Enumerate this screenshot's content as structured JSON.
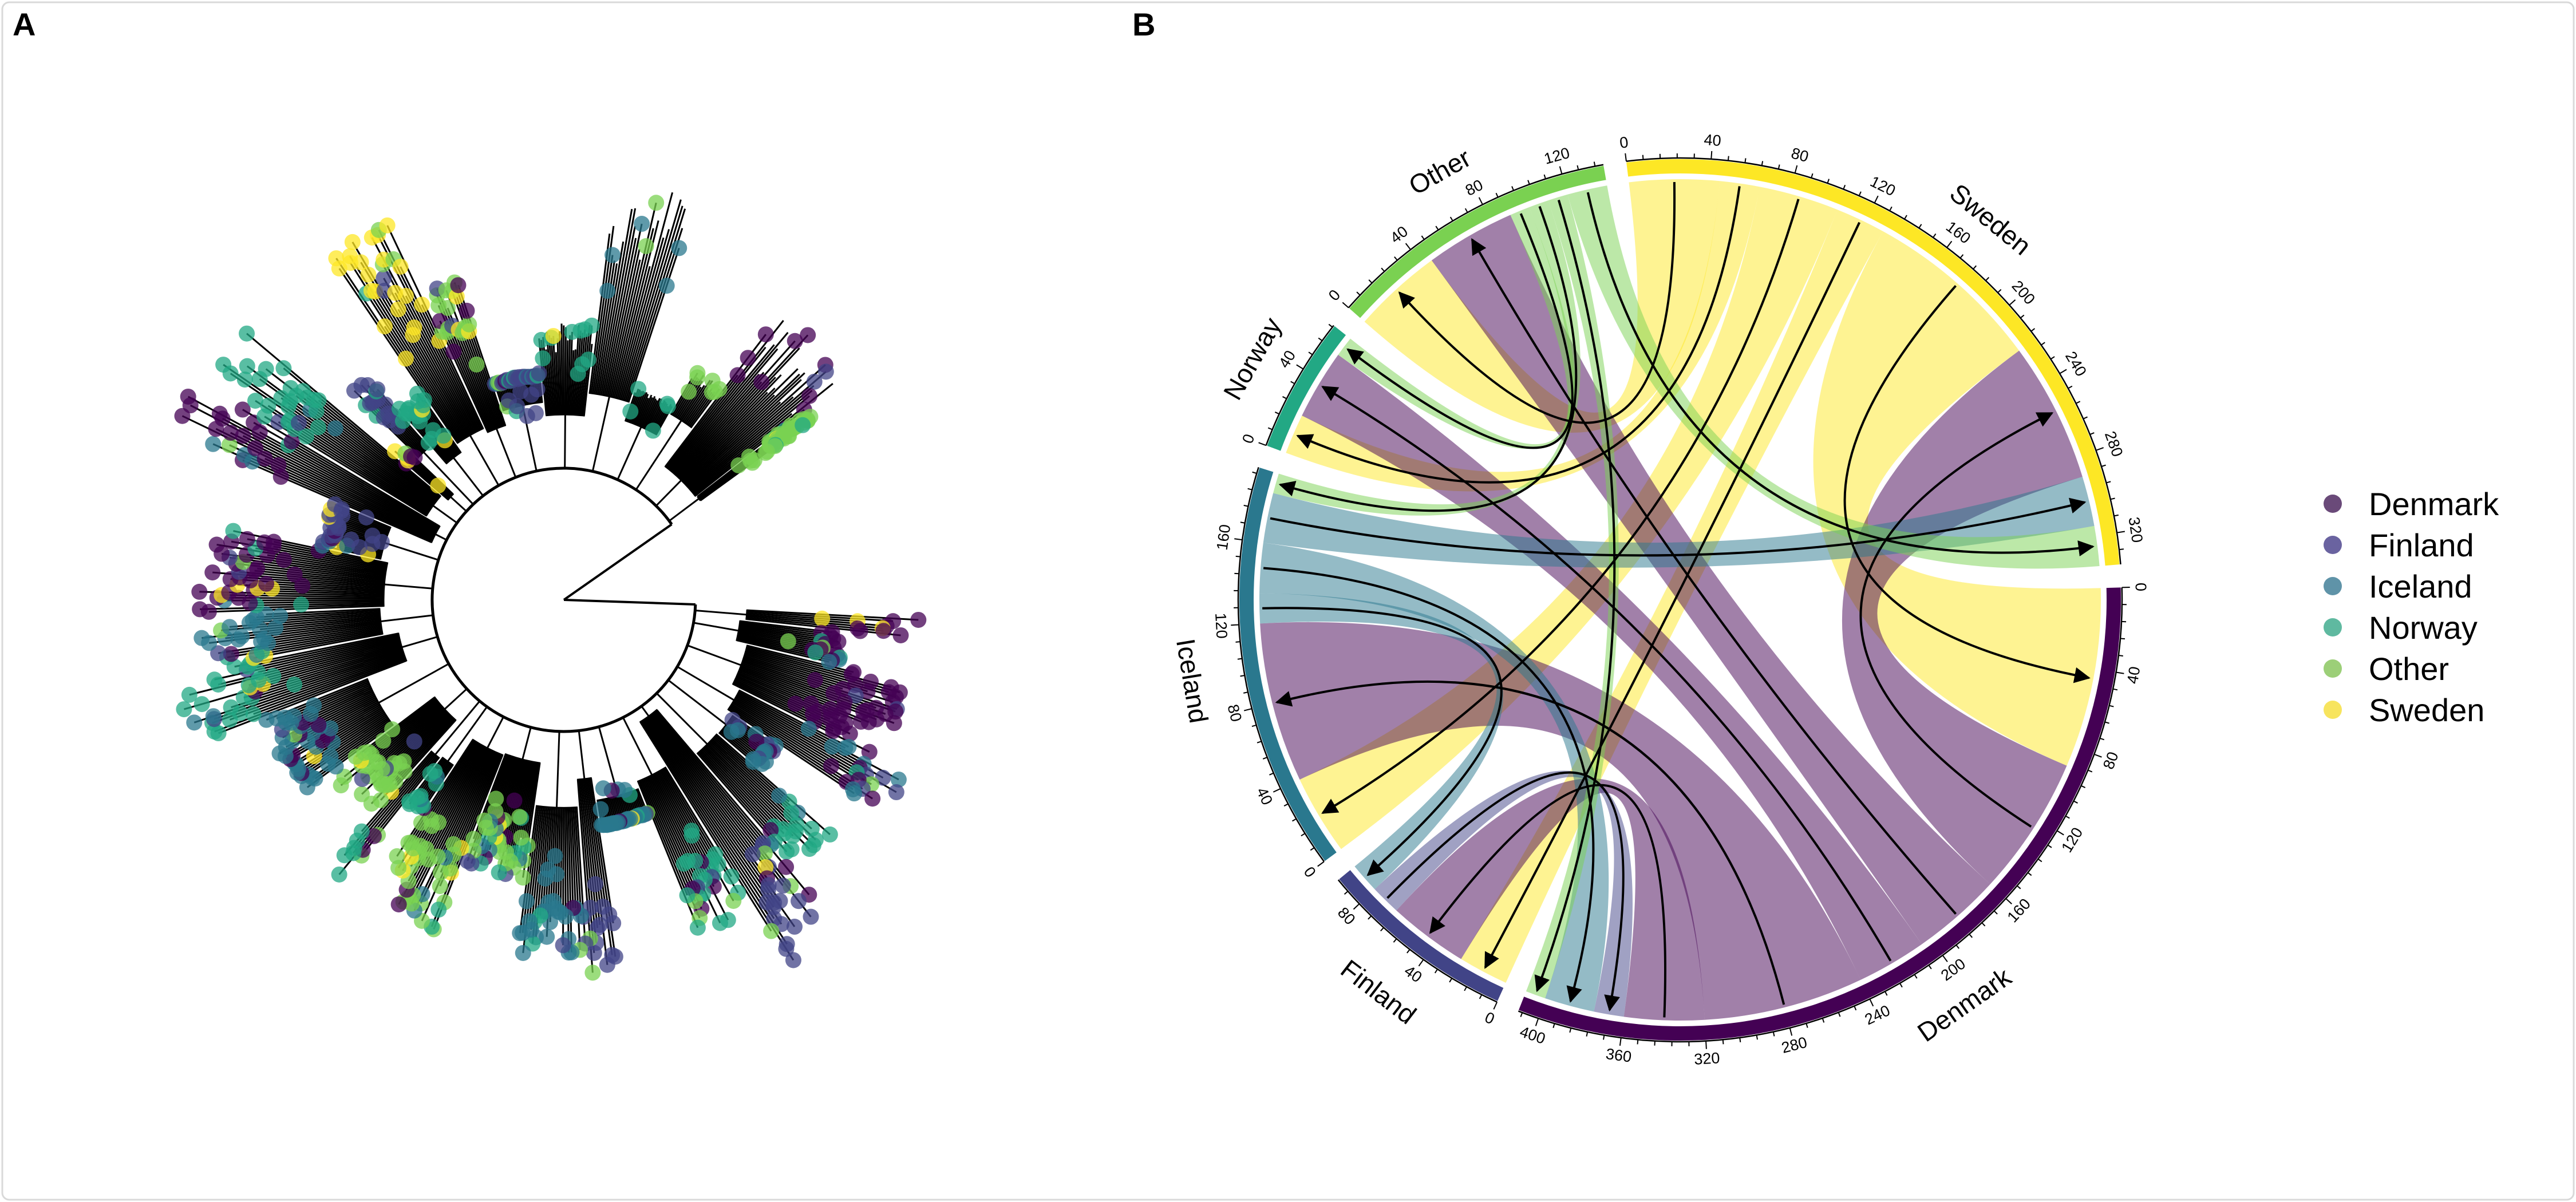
{
  "panels": {
    "a_label": "A",
    "b_label": "B"
  },
  "legend": {
    "items": [
      {
        "label": "Denmark",
        "color": "#6a4a79"
      },
      {
        "label": "Finland",
        "color": "#6a63a0"
      },
      {
        "label": "Iceland",
        "color": "#5f93a8"
      },
      {
        "label": "Norway",
        "color": "#5fb9a0"
      },
      {
        "label": "Other",
        "color": "#9ccf78"
      },
      {
        "label": "Sweden",
        "color": "#f7e45e"
      }
    ]
  },
  "tree": {
    "type": "circular phylogenetic tree",
    "tip_colors": {
      "Denmark": "#440154",
      "Finland": "#414487",
      "Iceland": "#2A788E",
      "Norway": "#22A884",
      "Other": "#7AD151",
      "Sweden": "#FDE725"
    }
  },
  "chart_data": {
    "type": "chord",
    "directed": true,
    "tick_step": 8,
    "label_step": 40,
    "sectors": [
      {
        "name": "Sweden",
        "color": "#FDE725"
      },
      {
        "name": "Denmark",
        "color": "#440154"
      },
      {
        "name": "Finland",
        "color": "#414487"
      },
      {
        "name": "Iceland",
        "color": "#2A788E"
      },
      {
        "name": "Norway",
        "color": "#22A884"
      },
      {
        "name": "Other",
        "color": "#7AD151"
      }
    ],
    "links": [
      {
        "from": "Sweden",
        "to": "Other",
        "value": 45
      },
      {
        "from": "Sweden",
        "to": "Norway",
        "value": 20
      },
      {
        "from": "Sweden",
        "to": "Iceland",
        "value": 40
      },
      {
        "from": "Sweden",
        "to": "Finland",
        "value": 25
      },
      {
        "from": "Sweden",
        "to": "Denmark",
        "value": 90
      },
      {
        "from": "Denmark",
        "to": "Sweden",
        "value": 70
      },
      {
        "from": "Denmark",
        "to": "Other",
        "value": 45
      },
      {
        "from": "Denmark",
        "to": "Norway",
        "value": 35
      },
      {
        "from": "Denmark",
        "to": "Iceland",
        "value": 80
      },
      {
        "from": "Denmark",
        "to": "Finland",
        "value": 40
      },
      {
        "from": "Finland",
        "to": "Denmark",
        "value": 15
      },
      {
        "from": "Iceland",
        "to": "Finland",
        "value": 15
      },
      {
        "from": "Iceland",
        "to": "Denmark",
        "value": 25
      },
      {
        "from": "Iceland",
        "to": "Sweden",
        "value": 25
      },
      {
        "from": "Other",
        "to": "Norway",
        "value": 10
      },
      {
        "from": "Other",
        "to": "Iceland",
        "value": 10
      },
      {
        "from": "Other",
        "to": "Denmark",
        "value": 10
      },
      {
        "from": "Other",
        "to": "Sweden",
        "value": 20
      }
    ]
  }
}
